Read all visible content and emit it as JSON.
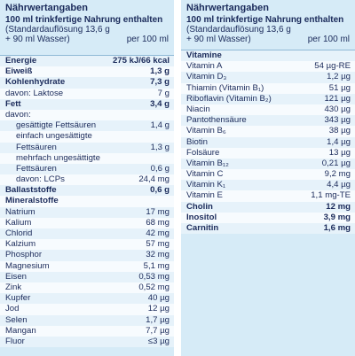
{
  "left": {
    "header": {
      "title": "Nährwertangaben",
      "line1": "100 ml trinkfertige Nahrung enthalten",
      "line2": "(Standardauflösung 13,6 g",
      "line3": "+ 90 ml Wasser)",
      "unit": "per 100 ml"
    },
    "rows": [
      {
        "label": "Energie",
        "value": "275 kJ/66 kcal",
        "bold": true
      },
      {
        "label": "Eiweiß",
        "value": "1,3 g",
        "bold": true
      },
      {
        "label": "Kohlenhydrate",
        "value": "7,3 g",
        "bold": true
      },
      {
        "label": "davon: Laktose",
        "value": "7 g"
      },
      {
        "label": "Fett",
        "value": "3,4 g",
        "bold": true
      },
      {
        "label": "davon:"
      },
      {
        "label": "gesättigte Fettsäuren",
        "value": "1,4 g",
        "indent": true
      },
      {
        "label": "einfach ungesättigte",
        "indent": true
      },
      {
        "label": "Fettsäuren",
        "value": "1,3 g",
        "indent": true
      },
      {
        "label": "mehrfach ungesättigte",
        "indent": true
      },
      {
        "label": "Fettsäuren",
        "value": "0,6 g",
        "indent": true
      },
      {
        "label": "davon: LCPs",
        "value": "24,4 mg",
        "indent": true
      },
      {
        "label": "Ballaststoffe",
        "value": "0,6 g",
        "bold": true
      },
      {
        "label": "Mineralstoffe",
        "bold": true
      },
      {
        "label": "Natrium",
        "value": "17 mg"
      },
      {
        "label": "Kalium",
        "value": "68 mg"
      },
      {
        "label": "Chlorid",
        "value": "42 mg"
      },
      {
        "label": "Kalzium",
        "value": "57 mg"
      },
      {
        "label": "Phosphor",
        "value": "32 mg"
      },
      {
        "label": "Magnesium",
        "value": "5,1 mg"
      },
      {
        "label": "Eisen",
        "value": "0,53 mg"
      },
      {
        "label": "Zink",
        "value": "0,52 mg"
      },
      {
        "label": "Kupfer",
        "value": "40 µg"
      },
      {
        "label": "Jod",
        "value": "12 µg"
      },
      {
        "label": "Selen",
        "value": "1,7 µg"
      },
      {
        "label": "Mangan",
        "value": "7,7 µg"
      },
      {
        "label": "Fluor",
        "value": "≤3 µg"
      }
    ]
  },
  "right": {
    "header": {
      "title": "Nährwertangaben",
      "line1": "100 ml trinkfertige Nahrung enthalten",
      "line2": "(Standardauflösung 13,6 g",
      "line3": "+ 90 ml Wasser)",
      "unit": "per 100 ml"
    },
    "rows": [
      {
        "label": "Vitamine",
        "bold": true
      },
      {
        "label": "Vitamin A",
        "value": "54 µg-RE"
      },
      {
        "label": "Vitamin D₃",
        "value": "1,2 µg"
      },
      {
        "label": "Thiamin (Vitamin B₁)",
        "value": "51 µg"
      },
      {
        "label": "Riboflavin (Vitamin B₂)",
        "value": "121 µg"
      },
      {
        "label": "Niacin",
        "value": "430 µg"
      },
      {
        "label": "Pantothensäure",
        "value": "343 µg"
      },
      {
        "label": "Vitamin B₆",
        "value": "38 µg"
      },
      {
        "label": "Biotin",
        "value": "1,4 µg"
      },
      {
        "label": "Folsäure",
        "value": "13 µg"
      },
      {
        "label": "Vitamin B₁₂",
        "value": "0,21 µg"
      },
      {
        "label": "Vitamin C",
        "value": "9,2 mg"
      },
      {
        "label": "Vitamin K₁",
        "value": "4,4 µg"
      },
      {
        "label": "Vitamin E",
        "value": "1,1 mg-TE"
      },
      {
        "label": "Cholin",
        "value": "12 mg",
        "bold": true
      },
      {
        "label": "Inositol",
        "value": "3,9 mg",
        "bold": true
      },
      {
        "label": "Carnitin",
        "value": "1,6 mg",
        "bold": true
      }
    ]
  }
}
